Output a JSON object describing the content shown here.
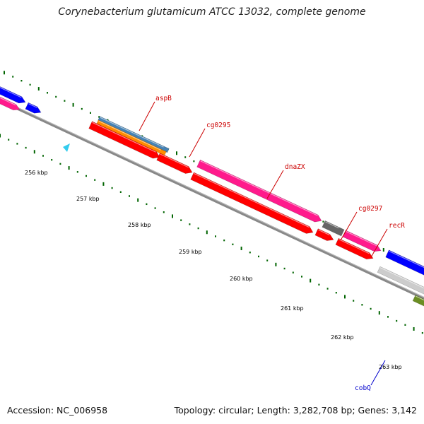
{
  "title": "Corynebacterium glutamicum ATCC 13032, complete genome",
  "footer": {
    "accession": "Accession: NC_006958",
    "summary": "Topology: circular; Length: 3,282,708 bp; Genes: 3,142"
  },
  "ticks": [
    {
      "label": "256 kbp"
    },
    {
      "label": "257 kbp"
    },
    {
      "label": "258 kbp"
    },
    {
      "label": "259 kbp"
    },
    {
      "label": "260 kbp"
    },
    {
      "label": "261 kbp"
    },
    {
      "label": "262 kbp"
    },
    {
      "label": "263 kbp"
    }
  ],
  "gene_labels": [
    {
      "name": "aspB",
      "color": "#cc0000"
    },
    {
      "name": "cg0295",
      "color": "#cc0000"
    },
    {
      "name": "dnaZX",
      "color": "#cc0000"
    },
    {
      "name": "cg0297",
      "color": "#cc0000"
    },
    {
      "name": "recR",
      "color": "#cc0000"
    },
    {
      "name": "cobQ",
      "color": "#0000cc"
    }
  ],
  "colors": {
    "backbone": "#888888",
    "cds_forward": "#ff1a8c",
    "cds_reverse": "#ff0000",
    "blue_feature": "#0000ff",
    "steelblue_feature": "#4682b4",
    "orange_feature": "#ff8c00",
    "grey_feature": "#666666",
    "light_feature": "#cccccc",
    "olive_feature": "#6b8e23",
    "tick_green": "#006400",
    "cyan_marker": "#33ccee"
  }
}
